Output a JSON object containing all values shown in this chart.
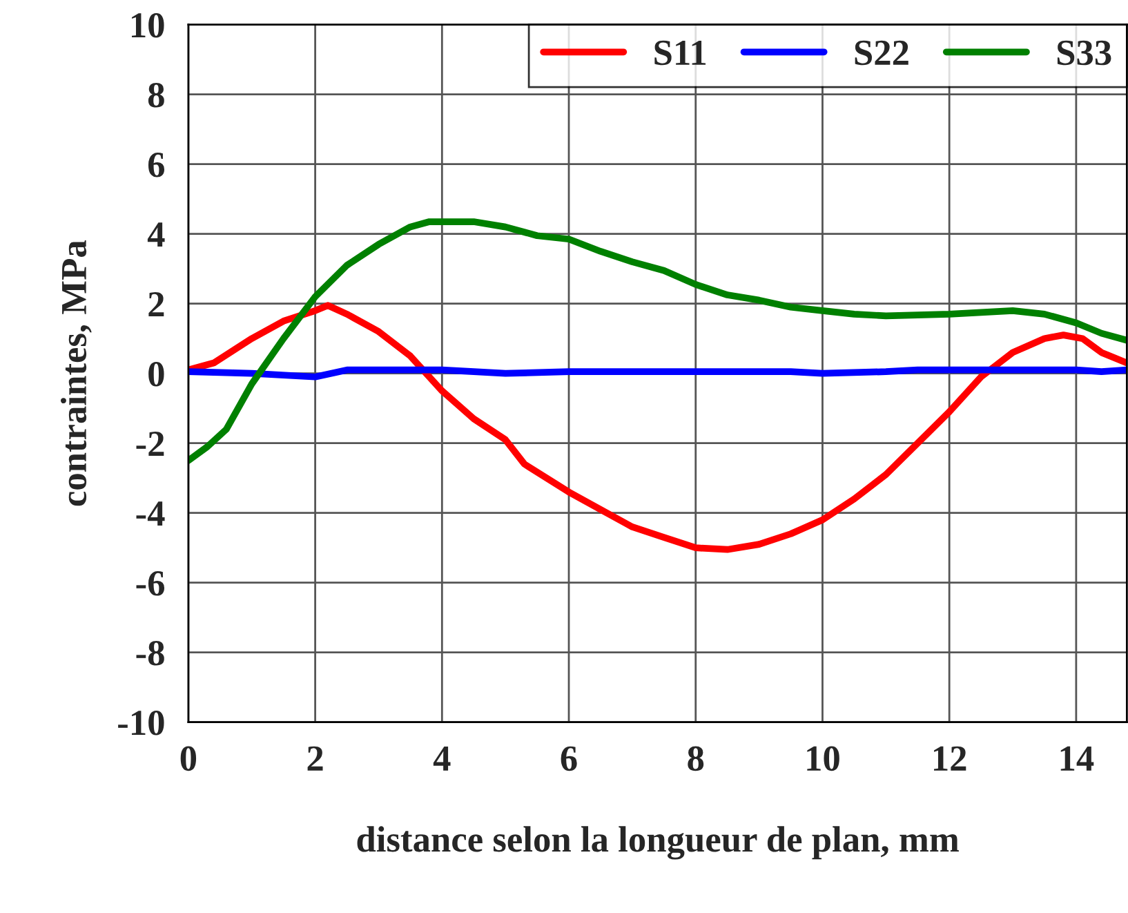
{
  "chart_data": {
    "type": "line",
    "xlabel": "distance selon la longueur de plan, mm",
    "ylabel": "contraintes, MPa",
    "xlim": [
      0,
      14.8
    ],
    "xticks": [
      0,
      2,
      4,
      6,
      8,
      10,
      12,
      14
    ],
    "ylim": [
      -10,
      10
    ],
    "yticks": [
      -10,
      -8,
      -6,
      -4,
      -2,
      0,
      2,
      4,
      6,
      8,
      10
    ],
    "grid": true,
    "legend": "top right",
    "marker": "none",
    "line_style": "solid",
    "series": [
      {
        "name": "S11",
        "color": "#ff0000",
        "x": [
          0,
          0.4,
          1,
          1.5,
          2,
          2.2,
          2.5,
          3,
          3.5,
          4,
          4.5,
          5,
          5.3,
          6,
          6.5,
          7,
          7.5,
          8,
          8.5,
          9,
          9.5,
          10,
          10.5,
          11,
          11.5,
          12,
          12.5,
          13,
          13.5,
          13.8,
          14.1,
          14.4,
          14.8
        ],
        "values": [
          0.1,
          0.3,
          1.0,
          1.5,
          1.8,
          1.95,
          1.7,
          1.2,
          0.5,
          -0.5,
          -1.3,
          -1.9,
          -2.6,
          -3.4,
          -3.9,
          -4.4,
          -4.7,
          -5.0,
          -5.05,
          -4.9,
          -4.6,
          -4.2,
          -3.6,
          -2.9,
          -2.0,
          -1.1,
          -0.1,
          0.6,
          1.0,
          1.1,
          1.0,
          0.6,
          0.3
        ]
      },
      {
        "name": "S22",
        "color": "#0000ff",
        "x": [
          0,
          1,
          2,
          2.5,
          4,
          5,
          6,
          8,
          9.5,
          10,
          11,
          11.5,
          14,
          14.4,
          14.8
        ],
        "values": [
          0.05,
          0,
          -0.1,
          0.1,
          0.1,
          0,
          0.05,
          0.05,
          0.05,
          0,
          0.05,
          0.1,
          0.1,
          0.05,
          0.1
        ]
      },
      {
        "name": "S33",
        "color": "#008000",
        "x": [
          0,
          0.3,
          0.6,
          1,
          1.5,
          2,
          2.5,
          3,
          3.5,
          3.8,
          4.5,
          5,
          5.5,
          6,
          6.5,
          7,
          7.5,
          8,
          8.5,
          9,
          9.5,
          10,
          10.5,
          11,
          12,
          12.5,
          13,
          13.5,
          14,
          14.4,
          14.8
        ],
        "values": [
          -2.5,
          -2.1,
          -1.6,
          -0.3,
          1.0,
          2.2,
          3.1,
          3.7,
          4.2,
          4.35,
          4.35,
          4.2,
          3.95,
          3.85,
          3.5,
          3.2,
          2.95,
          2.55,
          2.25,
          2.1,
          1.9,
          1.8,
          1.7,
          1.65,
          1.7,
          1.75,
          1.8,
          1.7,
          1.45,
          1.15,
          0.95
        ]
      }
    ]
  }
}
